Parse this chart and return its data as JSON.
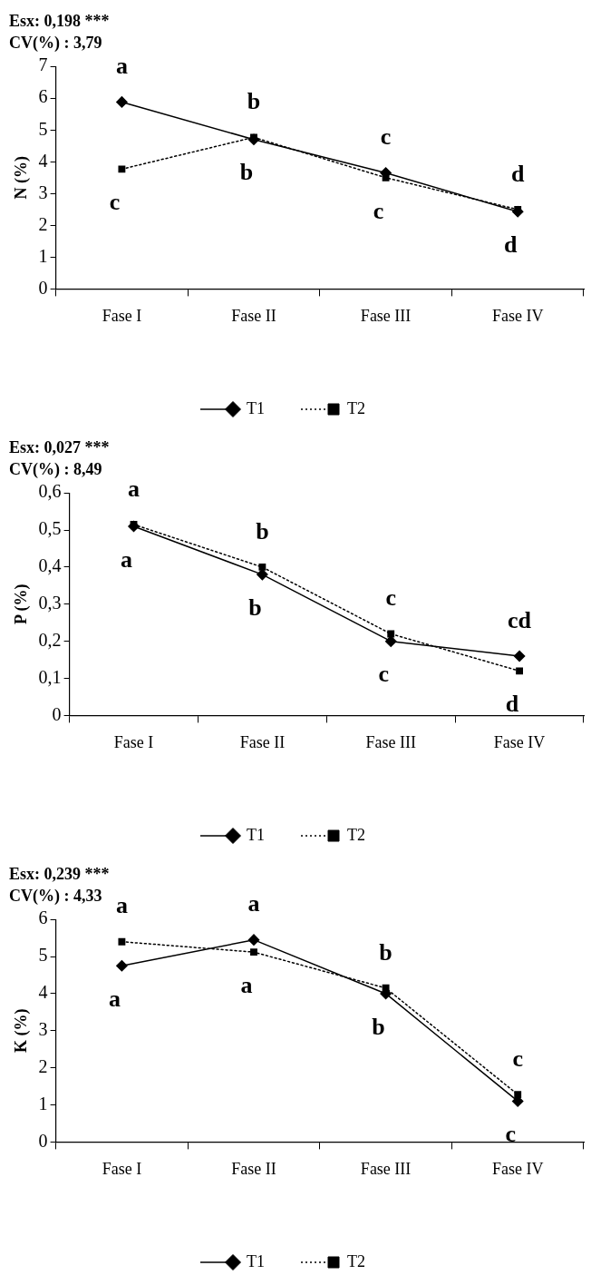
{
  "chart_data": [
    {
      "type": "line",
      "title": "Esx: 0,198 ***",
      "subtitle": "CV(%) : 3,79",
      "ylabel": "N (%)",
      "categories": [
        "Fase I",
        "Fase II",
        "Fase III",
        "Fase IV"
      ],
      "series": [
        {
          "name": "T1",
          "color": "#000000",
          "values": [
            5.88,
            4.7,
            3.65,
            2.43
          ],
          "marker": "diamond",
          "line_style": "solid"
        },
        {
          "name": "T2",
          "color": "#000000",
          "values": [
            3.77,
            4.77,
            3.5,
            2.5
          ],
          "marker": "square",
          "line_style": "dotted"
        }
      ],
      "ylim": [
        0,
        7
      ],
      "yticks": [
        0,
        1,
        2,
        3,
        4,
        5,
        6,
        7
      ],
      "grid": false,
      "legend": "bottom",
      "annotations": [
        {
          "text": "a",
          "x": "Fase I",
          "y": 5.88
        },
        {
          "text": "c",
          "x": "Fase I",
          "y": 3.77
        },
        {
          "text": "b",
          "x": "Fase II",
          "y": 4.77
        },
        {
          "text": "b",
          "x": "Fase II",
          "y": 4.7
        },
        {
          "text": "c",
          "x": "Fase III",
          "y": 3.65
        },
        {
          "text": "c",
          "x": "Fase III",
          "y": 3.5
        },
        {
          "text": "d",
          "x": "Fase IV",
          "y": 2.5
        },
        {
          "text": "d",
          "x": "Fase IV",
          "y": 2.43
        }
      ]
    },
    {
      "type": "line",
      "title": "Esx: 0,027 ***",
      "subtitle": "CV(%) : 8,49",
      "ylabel": "P (%)",
      "categories": [
        "Fase I",
        "Fase II",
        "Fase III",
        "Fase IV"
      ],
      "series": [
        {
          "name": "T1",
          "color": "#000000",
          "values": [
            0.51,
            0.38,
            0.2,
            0.16
          ],
          "marker": "diamond",
          "line_style": "solid"
        },
        {
          "name": "T2",
          "color": "#000000",
          "values": [
            0.515,
            0.4,
            0.22,
            0.12
          ],
          "marker": "square",
          "line_style": "dotted"
        }
      ],
      "ylim": [
        0,
        0.6
      ],
      "yticks": [
        {
          "value": 0,
          "label": "0"
        },
        {
          "value": 0.1,
          "label": "0,1"
        },
        {
          "value": 0.2,
          "label": "0,2"
        },
        {
          "value": 0.3,
          "label": "0,3"
        },
        {
          "value": 0.4,
          "label": "0,4"
        },
        {
          "value": 0.5,
          "label": "0,5"
        },
        {
          "value": 0.6,
          "label": "0,6"
        }
      ],
      "grid": false,
      "legend": "bottom",
      "annotations": [
        {
          "text": "a",
          "x": "Fase I",
          "y": 0.515
        },
        {
          "text": "a",
          "x": "Fase I",
          "y": 0.51
        },
        {
          "text": "b",
          "x": "Fase II",
          "y": 0.4
        },
        {
          "text": "b",
          "x": "Fase II",
          "y": 0.38
        },
        {
          "text": "c",
          "x": "Fase III",
          "y": 0.22
        },
        {
          "text": "c",
          "x": "Fase III",
          "y": 0.2
        },
        {
          "text": "cd",
          "x": "Fase IV",
          "y": 0.16
        },
        {
          "text": "d",
          "x": "Fase IV",
          "y": 0.12
        }
      ]
    },
    {
      "type": "line",
      "title": "Esx: 0,239 ***",
      "subtitle": "CV(%) : 4,33",
      "ylabel": "K (%)",
      "categories": [
        "Fase I",
        "Fase II",
        "Fase III",
        "Fase IV"
      ],
      "series": [
        {
          "name": "T1",
          "color": "#000000",
          "values": [
            4.75,
            5.45,
            4.0,
            1.1
          ],
          "marker": "diamond",
          "line_style": "solid"
        },
        {
          "name": "T2",
          "color": "#000000",
          "values": [
            5.4,
            5.12,
            4.15,
            1.28
          ],
          "marker": "square",
          "line_style": "dotted"
        }
      ],
      "ylim": [
        0,
        6
      ],
      "yticks": [
        0,
        1,
        2,
        3,
        4,
        5,
        6
      ],
      "grid": false,
      "legend": "bottom",
      "annotations": [
        {
          "text": "a",
          "x": "Fase I",
          "y": 5.4
        },
        {
          "text": "a",
          "x": "Fase I",
          "y": 4.75
        },
        {
          "text": "a",
          "x": "Fase II",
          "y": 5.45
        },
        {
          "text": "a",
          "x": "Fase II",
          "y": 5.12
        },
        {
          "text": "b",
          "x": "Fase III",
          "y": 4.15
        },
        {
          "text": "b",
          "x": "Fase III",
          "y": 4.0
        },
        {
          "text": "c",
          "x": "Fase IV",
          "y": 1.28
        },
        {
          "text": "c",
          "x": "Fase IV",
          "y": 1.1
        }
      ]
    }
  ]
}
